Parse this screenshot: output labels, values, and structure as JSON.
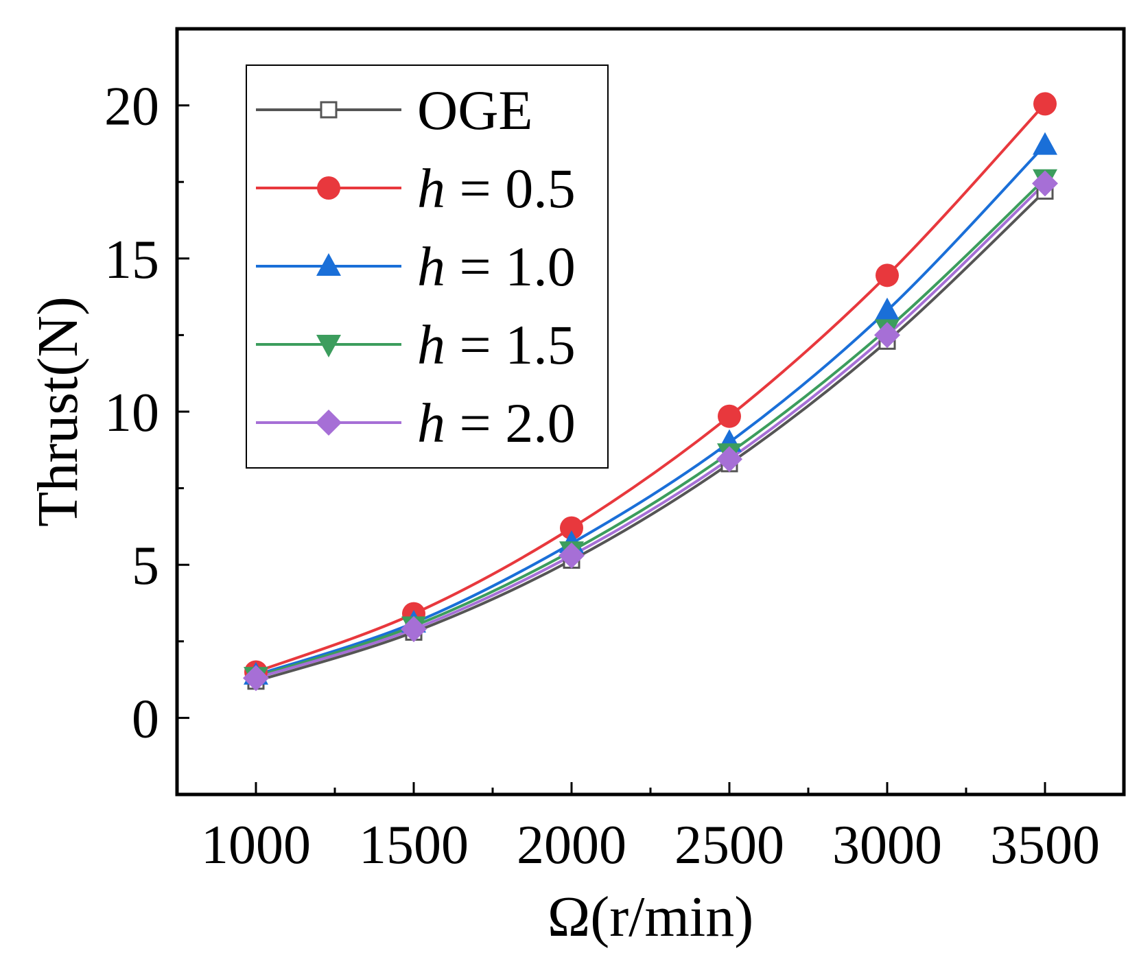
{
  "chart_data": {
    "type": "line",
    "title": "",
    "xlabel": "Ω(r/min)",
    "ylabel": "Thrust(N)",
    "xlim": [
      750,
      3750
    ],
    "ylim": [
      -2.5,
      22.5
    ],
    "x": [
      1000,
      1500,
      2000,
      2500,
      3000,
      3500
    ],
    "xticks": [
      1000,
      1500,
      2000,
      2500,
      3000,
      3500
    ],
    "xtick_labels": [
      "1000",
      "1500",
      "2000",
      "2500",
      "3000",
      "3500"
    ],
    "yticks": [
      0,
      5,
      10,
      15,
      20
    ],
    "ytick_labels": [
      "0",
      "5",
      "10",
      "15",
      "20"
    ],
    "grid": false,
    "legend_position": "top-left",
    "series": [
      {
        "name": "OGE",
        "legend_var": "",
        "legend_rest": "OGE",
        "color": "#555555",
        "marker": "square-open",
        "values": [
          1.2,
          2.8,
          5.15,
          8.3,
          12.3,
          17.2
        ]
      },
      {
        "name": "h = 0.5",
        "legend_var": "h",
        "legend_rest": " = 0.5",
        "color": "#e8383d",
        "marker": "circle",
        "values": [
          1.5,
          3.4,
          6.2,
          9.85,
          14.45,
          20.05
        ]
      },
      {
        "name": "h = 1.0",
        "legend_var": "h",
        "legend_rest": " = 1.0",
        "color": "#1a6fd8",
        "marker": "triangle-up",
        "values": [
          1.4,
          3.1,
          5.7,
          9.0,
          13.3,
          18.7
        ]
      },
      {
        "name": "h = 1.5",
        "legend_var": "h",
        "legend_rest": " = 1.5",
        "color": "#3c9d5d",
        "marker": "triangle-down",
        "values": [
          1.35,
          3.0,
          5.45,
          8.65,
          12.7,
          17.6
        ]
      },
      {
        "name": "h = 2.0",
        "legend_var": "h",
        "legend_rest": " = 2.0",
        "color": "#a66fd6",
        "marker": "diamond",
        "values": [
          1.3,
          2.9,
          5.3,
          8.45,
          12.5,
          17.45
        ]
      }
    ]
  }
}
